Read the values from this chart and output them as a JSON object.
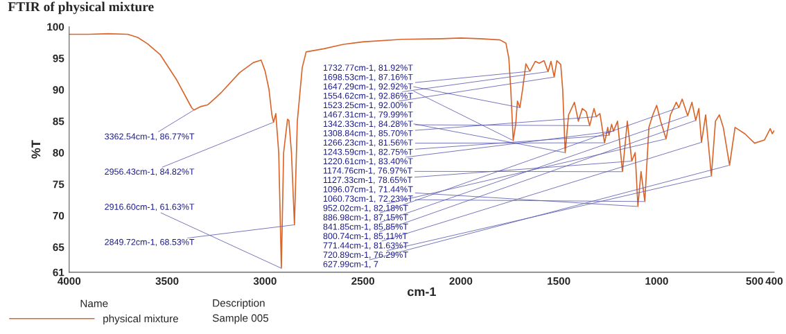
{
  "chart_data": {
    "type": "line",
    "title": "FTIR of physical mixture",
    "xlabel": "cm-1",
    "ylabel": "%T",
    "legend_title": "Name",
    "legend": "bottom left",
    "grid": false,
    "xlim": [
      4000,
      400
    ],
    "xticks": [
      4000,
      3500,
      3000,
      2500,
      2000,
      1500,
      1000,
      500,
      400
    ],
    "ylim": [
      61,
      100
    ],
    "yticks": [
      61,
      65,
      70,
      75,
      80,
      85,
      90,
      95,
      100
    ],
    "series": [
      {
        "name": "physical mixture",
        "color": "#d9652b",
        "x": [
          4000,
          3900,
          3800,
          3700,
          3650,
          3600,
          3536,
          3450,
          3374,
          3362.54,
          3330,
          3292,
          3260,
          3225,
          3130,
          3060,
          3020,
          3000,
          2980,
          2965,
          2956.43,
          2945,
          2930,
          2916.6,
          2905,
          2885,
          2878,
          2865,
          2849.72,
          2835,
          2810,
          2790,
          2700,
          2600,
          2500,
          2300,
          2100,
          2000,
          1900,
          1800,
          1770,
          1755,
          1745,
          1732.77,
          1720,
          1711,
          1698.53,
          1685,
          1668,
          1647.29,
          1620,
          1600,
          1575,
          1554.62,
          1540,
          1523.25,
          1510,
          1490,
          1480,
          1467.31,
          1450,
          1420,
          1400,
          1380,
          1360,
          1342.33,
          1320,
          1308.84,
          1290,
          1266.23,
          1250,
          1243.59,
          1230,
          1220.61,
          1200,
          1174.76,
          1150,
          1127.33,
          1110,
          1096.07,
          1080,
          1060.73,
          1040,
          1020,
          1000,
          980,
          952.02,
          930,
          900,
          886.98,
          870,
          841.85,
          820,
          800.74,
          785,
          771.44,
          750,
          720.89,
          700,
          680,
          660,
          627.99,
          600,
          550,
          500,
          450,
          420,
          410,
          400
        ],
        "values": [
          98.8,
          98.8,
          98.9,
          98.8,
          98.3,
          97.3,
          95.6,
          91.5,
          87.1,
          86.77,
          87.3,
          87.6,
          88.5,
          89.5,
          92.7,
          94.3,
          94.7,
          93,
          90.1,
          86,
          84.82,
          86.2,
          80,
          61.63,
          80,
          85.3,
          85.1,
          80,
          68.53,
          85,
          93.5,
          96,
          96.5,
          97.2,
          97.6,
          98,
          98.1,
          98.2,
          98.1,
          97.9,
          97.4,
          95,
          90,
          81.92,
          84.5,
          88.2,
          87.16,
          90,
          94.1,
          92.92,
          94.5,
          94.2,
          94.6,
          92.86,
          94.5,
          92.0,
          94.6,
          94,
          90,
          79.99,
          86,
          88,
          85,
          87,
          86.5,
          84.28,
          87,
          85.7,
          86.2,
          81.56,
          84,
          82.75,
          84.5,
          83.4,
          85,
          76.97,
          85,
          78.65,
          80,
          71.44,
          77,
          72.23,
          84,
          86,
          87.5,
          85,
          82.18,
          86,
          88,
          87.15,
          88.5,
          85.85,
          88,
          85.11,
          87,
          81.63,
          86,
          76.29,
          85,
          86,
          84,
          78,
          84,
          83,
          81.5,
          82,
          83.8,
          83,
          83.5
        ]
      }
    ],
    "annotations": [
      {
        "text": "3362.54cm-1, 86.77%T",
        "x": 3362.54,
        "y": 86.77
      },
      {
        "text": "2956.43cm-1, 84.82%T",
        "x": 2956.43,
        "y": 84.82
      },
      {
        "text": "2916.60cm-1, 61.63%T",
        "x": 2916.6,
        "y": 61.63
      },
      {
        "text": "2849.72cm-1, 68.53%T",
        "x": 2849.72,
        "y": 68.53
      },
      {
        "text": "1732.77cm-1, 81.92%T",
        "x": 1732.77,
        "y": 81.92
      },
      {
        "text": "1698.53cm-1, 87.16%T",
        "x": 1698.53,
        "y": 87.16
      },
      {
        "text": "1647.29cm-1, 92.92%T",
        "x": 1647.29,
        "y": 92.92
      },
      {
        "text": "1554.62cm-1, 92.86%T",
        "x": 1554.62,
        "y": 92.86
      },
      {
        "text": "1523.25cm-1, 92.00%T",
        "x": 1523.25,
        "y": 92.0
      },
      {
        "text": "1467.31cm-1, 79.99%T",
        "x": 1467.31,
        "y": 79.99
      },
      {
        "text": "1342.33cm-1, 84.28%T",
        "x": 1342.33,
        "y": 84.28
      },
      {
        "text": "1308.84cm-1, 85.70%T",
        "x": 1308.84,
        "y": 85.7
      },
      {
        "text": "1266.23cm-1, 81.56%T",
        "x": 1266.23,
        "y": 81.56
      },
      {
        "text": "1243.59cm-1, 82.75%T",
        "x": 1243.59,
        "y": 82.75
      },
      {
        "text": "1220.61cm-1, 83.40%T",
        "x": 1220.61,
        "y": 83.4
      },
      {
        "text": "1174.76cm-1, 76.97%T",
        "x": 1174.76,
        "y": 76.97
      },
      {
        "text": "1127.33cm-1, 78.65%T",
        "x": 1127.33,
        "y": 78.65
      },
      {
        "text": "1096.07cm-1, 71.44%T",
        "x": 1096.07,
        "y": 71.44
      },
      {
        "text": "1060.73cm-1, 72.23%T",
        "x": 1060.73,
        "y": 72.23
      },
      {
        "text": "952.02cm-1, 82.18%T",
        "x": 952.02,
        "y": 82.18
      },
      {
        "text": "886.98cm-1, 87.15%T",
        "x": 886.98,
        "y": 87.15
      },
      {
        "text": "841.85cm-1, 85.85%T",
        "x": 841.85,
        "y": 85.85
      },
      {
        "text": "800.74cm-1, 85.11%T",
        "x": 800.74,
        "y": 85.11
      },
      {
        "text": "771.44cm-1, 81.63%T",
        "x": 771.44,
        "y": 81.63
      },
      {
        "text": "720.89cm-1, 76.29%T",
        "x": 720.89,
        "y": 76.29
      },
      {
        "text": "627.99cm-1, 7",
        "x": 627.99,
        "y": 78
      },
      "Description",
      "Sample 005"
    ]
  }
}
